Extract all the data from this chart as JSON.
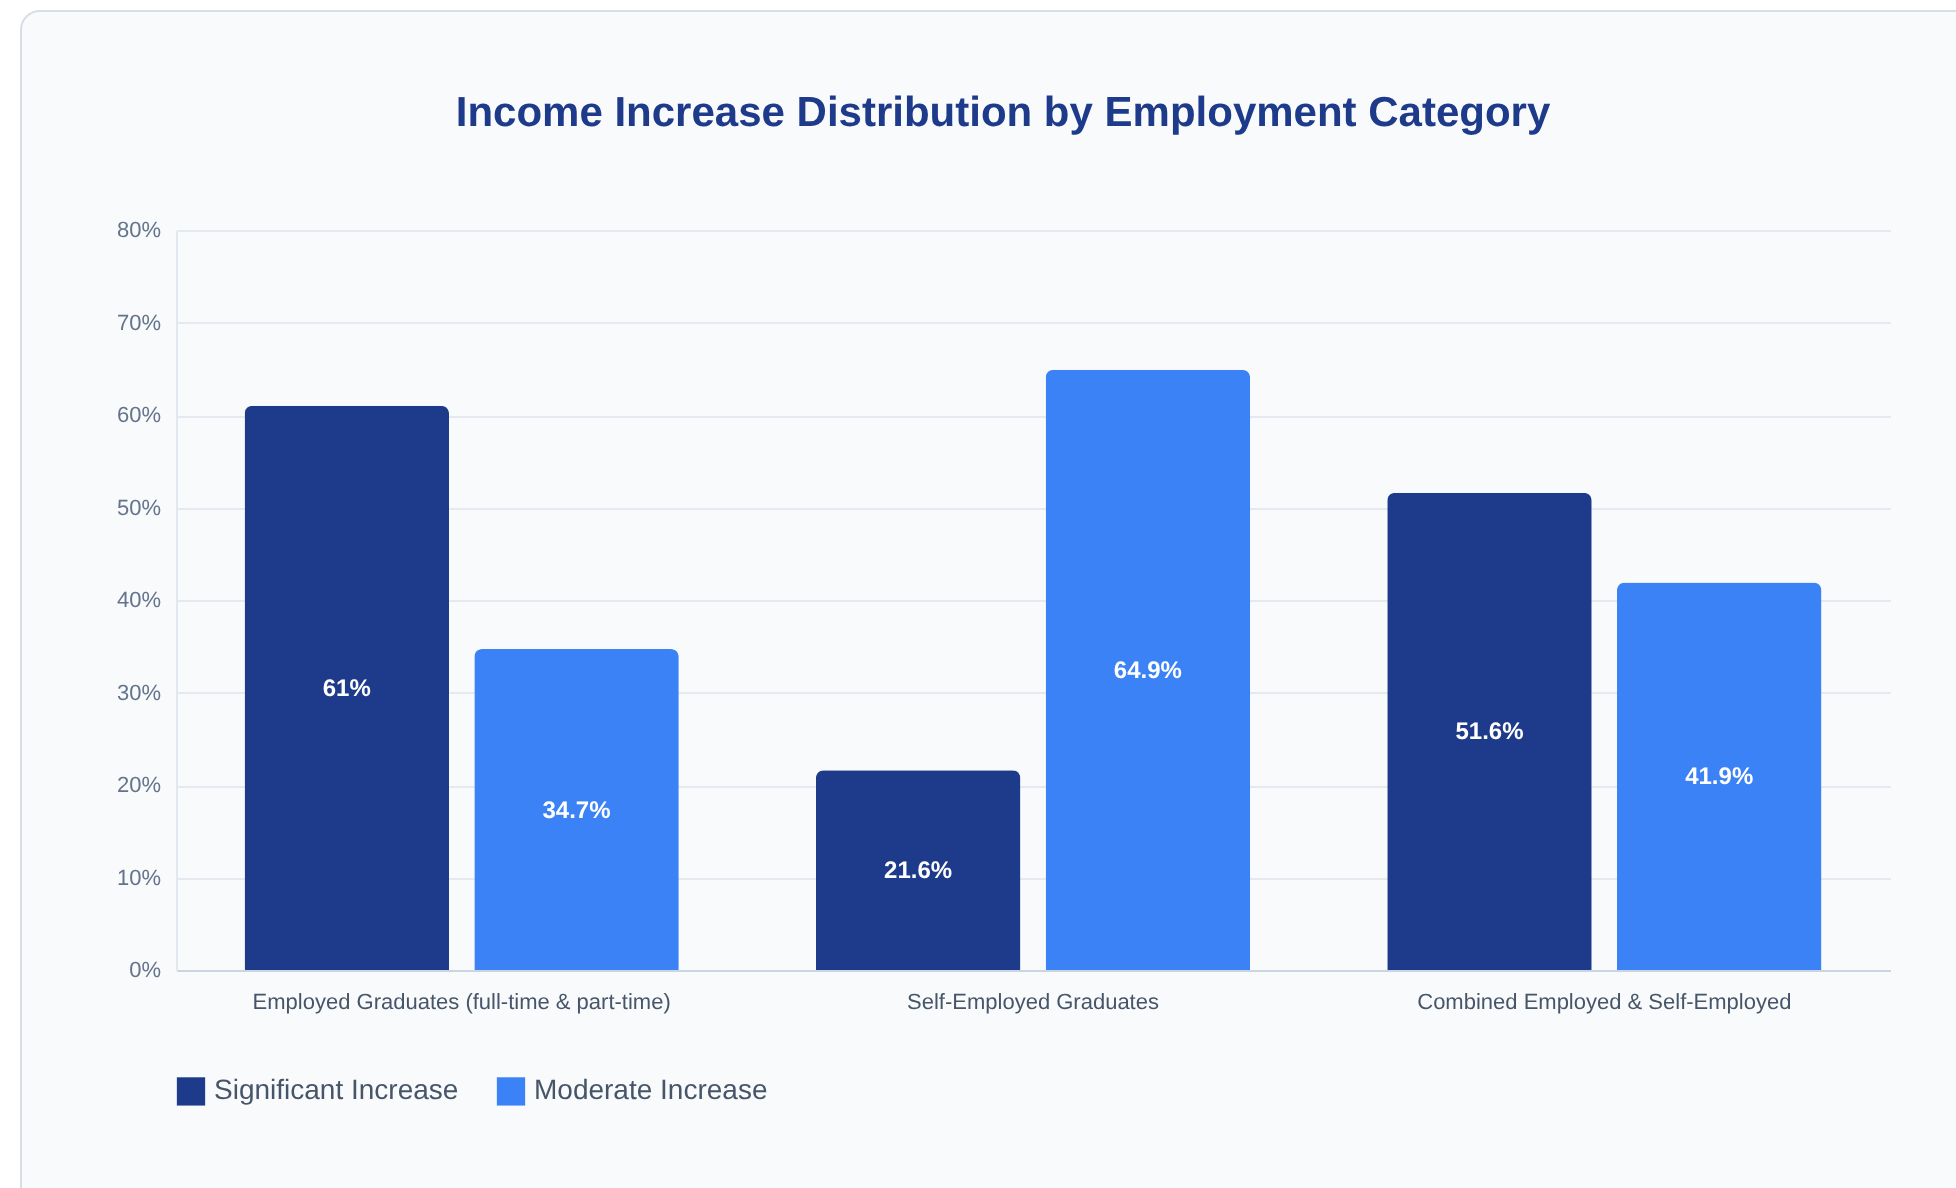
{
  "chart_data": {
    "type": "bar",
    "title": "Income Increase Distribution by Employment Category",
    "categories": [
      "Employed Graduates (full-time & part-time)",
      "Self-Employed Graduates",
      "Combined Employed & Self-Employed"
    ],
    "series": [
      {
        "name": "Significant Increase",
        "color": "#1e3a8a",
        "values": [
          61,
          21.6,
          51.6
        ],
        "value_labels": [
          "61%",
          "21.6%",
          "51.6%"
        ]
      },
      {
        "name": "Moderate Increase",
        "color": "#3b82f6",
        "values": [
          34.7,
          64.9,
          41.9
        ],
        "value_labels": [
          "34.7%",
          "64.9%",
          "41.9%"
        ]
      }
    ],
    "ylim": [
      0,
      80
    ],
    "yticks": [
      {
        "value": 0,
        "label": "0%"
      },
      {
        "value": 10,
        "label": "10%"
      },
      {
        "value": 20,
        "label": "20%"
      },
      {
        "value": 30,
        "label": "30%"
      },
      {
        "value": 40,
        "label": "40%"
      },
      {
        "value": 50,
        "label": "50%"
      },
      {
        "value": 60,
        "label": "60%"
      },
      {
        "value": 70,
        "label": "70%"
      },
      {
        "value": 80,
        "label": "80%"
      }
    ],
    "grid": "y",
    "legend": "bottom"
  }
}
